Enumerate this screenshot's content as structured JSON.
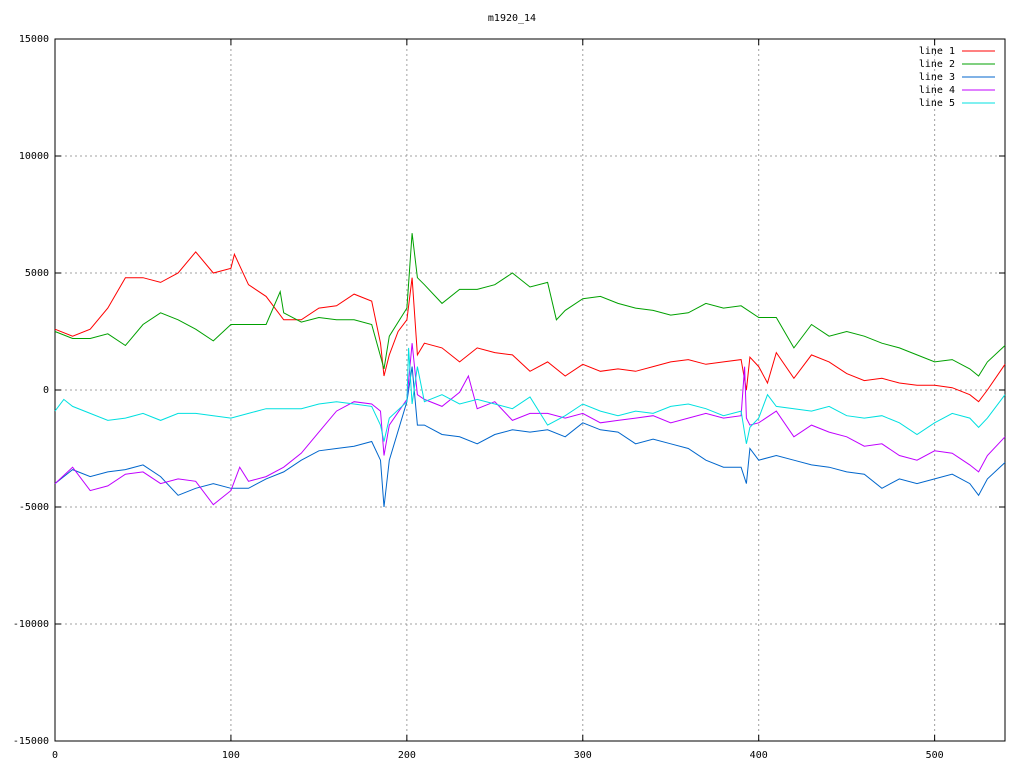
{
  "chart_data": {
    "type": "line",
    "title": "m1920_14",
    "xlim": [
      0,
      540
    ],
    "xticks": [
      0,
      100,
      200,
      300,
      400,
      500
    ],
    "ylim": [
      -15000,
      15000
    ],
    "yticks": [
      -15000,
      -10000,
      -5000,
      0,
      5000,
      10000,
      15000
    ],
    "grid": true,
    "legend": "top-right",
    "series": [
      {
        "name": "line 1",
        "color": "#ff0000",
        "x": [
          0,
          10,
          20,
          30,
          40,
          50,
          60,
          70,
          80,
          90,
          100,
          102,
          110,
          120,
          130,
          140,
          150,
          160,
          170,
          180,
          185,
          187,
          190,
          195,
          200,
          203,
          206,
          210,
          220,
          230,
          240,
          250,
          260,
          270,
          280,
          290,
          300,
          310,
          320,
          330,
          340,
          350,
          360,
          370,
          380,
          390,
          393,
          395,
          400,
          405,
          410,
          420,
          430,
          440,
          450,
          460,
          470,
          480,
          490,
          500,
          510,
          520,
          525,
          530,
          540
        ],
        "values": [
          2600,
          2300,
          2600,
          3500,
          4800,
          4800,
          4600,
          5000,
          5900,
          5000,
          5200,
          5800,
          4500,
          4000,
          3000,
          3000,
          3500,
          3600,
          4100,
          3800,
          2000,
          600,
          1500,
          2500,
          3000,
          4800,
          1500,
          2000,
          1800,
          1200,
          1800,
          1600,
          1500,
          800,
          1200,
          600,
          1100,
          800,
          900,
          800,
          1000,
          1200,
          1300,
          1100,
          1200,
          1300,
          0,
          1400,
          1000,
          300,
          1600,
          500,
          1500,
          1200,
          700,
          400,
          500,
          300,
          200,
          200,
          100,
          -200,
          -500,
          0,
          1100
        ]
      },
      {
        "name": "line 2",
        "color": "#00a000",
        "x": [
          0,
          10,
          20,
          30,
          40,
          50,
          60,
          70,
          80,
          90,
          100,
          110,
          120,
          128,
          130,
          140,
          150,
          160,
          170,
          180,
          187,
          190,
          200,
          203,
          206,
          210,
          220,
          230,
          240,
          250,
          260,
          270,
          280,
          285,
          290,
          300,
          310,
          320,
          330,
          340,
          350,
          360,
          370,
          380,
          390,
          400,
          410,
          420,
          430,
          440,
          450,
          460,
          470,
          480,
          490,
          500,
          510,
          520,
          525,
          530,
          540
        ],
        "values": [
          2500,
          2200,
          2200,
          2400,
          1900,
          2800,
          3300,
          3000,
          2600,
          2100,
          2800,
          2800,
          2800,
          4200,
          3300,
          2900,
          3100,
          3000,
          3000,
          2800,
          900,
          2300,
          3500,
          6700,
          4800,
          4500,
          3700,
          4300,
          4300,
          4500,
          5000,
          4400,
          4600,
          3000,
          3400,
          3900,
          4000,
          3700,
          3500,
          3400,
          3200,
          3300,
          3700,
          3500,
          3600,
          3100,
          3100,
          1800,
          2800,
          2300,
          2500,
          2300,
          2000,
          1800,
          1500,
          1200,
          1300,
          900,
          600,
          1200,
          1900
        ]
      },
      {
        "name": "line 3",
        "color": "#0066cc",
        "x": [
          0,
          10,
          20,
          30,
          40,
          50,
          60,
          70,
          80,
          90,
          100,
          110,
          120,
          130,
          140,
          150,
          160,
          170,
          180,
          185,
          187,
          190,
          200,
          203,
          206,
          210,
          220,
          230,
          240,
          250,
          260,
          270,
          280,
          290,
          300,
          310,
          320,
          330,
          340,
          350,
          360,
          370,
          380,
          390,
          393,
          395,
          400,
          410,
          420,
          430,
          440,
          450,
          460,
          470,
          480,
          490,
          500,
          510,
          520,
          525,
          530,
          540
        ],
        "values": [
          -4000,
          -3400,
          -3700,
          -3500,
          -3400,
          -3200,
          -3700,
          -4500,
          -4200,
          -4000,
          -4200,
          -4200,
          -3800,
          -3500,
          -3000,
          -2600,
          -2500,
          -2400,
          -2200,
          -3000,
          -5000,
          -3000,
          -500,
          1000,
          -1500,
          -1500,
          -1900,
          -2000,
          -2300,
          -1900,
          -1700,
          -1800,
          -1700,
          -2000,
          -1400,
          -1700,
          -1800,
          -2300,
          -2100,
          -2300,
          -2500,
          -3000,
          -3300,
          -3300,
          -4000,
          -2500,
          -3000,
          -2800,
          -3000,
          -3200,
          -3300,
          -3500,
          -3600,
          -4200,
          -3800,
          -4000,
          -3800,
          -3600,
          -4000,
          -4500,
          -3800,
          -3100
        ]
      },
      {
        "name": "line 4",
        "color": "#c000ff",
        "x": [
          0,
          10,
          20,
          30,
          40,
          50,
          60,
          70,
          80,
          90,
          100,
          105,
          110,
          120,
          130,
          140,
          150,
          160,
          170,
          180,
          185,
          187,
          190,
          200,
          203,
          206,
          210,
          220,
          230,
          235,
          240,
          250,
          260,
          270,
          280,
          290,
          300,
          310,
          320,
          330,
          340,
          350,
          360,
          370,
          380,
          390,
          392,
          393,
          395,
          400,
          410,
          420,
          430,
          440,
          450,
          460,
          470,
          480,
          490,
          500,
          510,
          520,
          525,
          530,
          540
        ],
        "values": [
          -4000,
          -3300,
          -4300,
          -4100,
          -3600,
          -3500,
          -4000,
          -3800,
          -3900,
          -4900,
          -4300,
          -3300,
          -3900,
          -3700,
          -3300,
          -2700,
          -1800,
          -900,
          -500,
          -600,
          -900,
          -2800,
          -1500,
          -400,
          2000,
          -200,
          -400,
          -700,
          -100,
          600,
          -800,
          -500,
          -1300,
          -1000,
          -1000,
          -1200,
          -1000,
          -1400,
          -1300,
          -1200,
          -1100,
          -1400,
          -1200,
          -1000,
          -1200,
          -1100,
          1000,
          -1200,
          -1500,
          -1400,
          -900,
          -2000,
          -1500,
          -1800,
          -2000,
          -2400,
          -2300,
          -2800,
          -3000,
          -2600,
          -2700,
          -3200,
          -3500,
          -2800,
          -2000
        ]
      },
      {
        "name": "line 5",
        "color": "#00e0e0",
        "x": [
          0,
          5,
          10,
          20,
          30,
          40,
          50,
          60,
          70,
          80,
          90,
          100,
          110,
          120,
          130,
          140,
          150,
          160,
          170,
          180,
          185,
          187,
          190,
          200,
          201,
          203,
          206,
          210,
          220,
          230,
          240,
          250,
          260,
          270,
          280,
          290,
          300,
          310,
          320,
          330,
          340,
          350,
          360,
          370,
          380,
          390,
          393,
          395,
          400,
          405,
          410,
          420,
          430,
          440,
          450,
          460,
          470,
          480,
          490,
          500,
          510,
          520,
          525,
          530,
          540
        ],
        "values": [
          -900,
          -400,
          -700,
          -1000,
          -1300,
          -1200,
          -1000,
          -1300,
          -1000,
          -1000,
          -1100,
          -1200,
          -1000,
          -800,
          -800,
          -800,
          -600,
          -500,
          -600,
          -700,
          -1500,
          -2200,
          -1200,
          -500,
          1800,
          -600,
          1000,
          -500,
          -200,
          -600,
          -400,
          -600,
          -800,
          -300,
          -1500,
          -1100,
          -600,
          -900,
          -1100,
          -900,
          -1000,
          -700,
          -600,
          -800,
          -1100,
          -900,
          -2300,
          -1600,
          -1200,
          -200,
          -700,
          -800,
          -900,
          -700,
          -1100,
          -1200,
          -1100,
          -1400,
          -1900,
          -1400,
          -1000,
          -1200,
          -1600,
          -1200,
          -200
        ]
      }
    ]
  }
}
